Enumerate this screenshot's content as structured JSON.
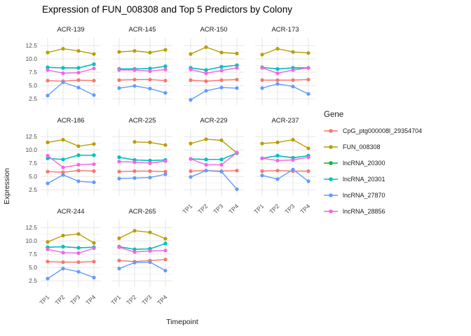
{
  "chart_data": {
    "type": "line",
    "title": "Expression of FUN_008308 and Top 5 Predictors by Colony",
    "xlabel": "Timepoint",
    "ylabel": "Expression",
    "x_categories": [
      "TP1",
      "TP2",
      "TP3",
      "TP4"
    ],
    "yticks": [
      2.5,
      5.0,
      7.5,
      10.0,
      12.5
    ],
    "ytick_labels": [
      "2.5",
      "5.0",
      "7.5",
      "10.0",
      "12.5"
    ],
    "ylim": [
      1.4,
      13.3
    ],
    "grid": true,
    "legend_position": "right",
    "legend_title": "Gene",
    "series_meta": [
      {
        "name": "CpG_ptg000008l_29354704",
        "color": "#F8766D"
      },
      {
        "name": "FUN_008308",
        "color": "#B79F00"
      },
      {
        "name": "lncRNA_20300",
        "color": "#00BA38"
      },
      {
        "name": "lncRNA_20301",
        "color": "#00BFC4"
      },
      {
        "name": "lncRNA_27870",
        "color": "#619CFF"
      },
      {
        "name": "lncRNA_28856",
        "color": "#F564E3"
      }
    ],
    "facets": [
      {
        "colony": "ACR-139",
        "series": {
          "CpG_ptg000008l_29354704": [
            5.9,
            5.8,
            6.0,
            5.9
          ],
          "FUN_008308": [
            11.2,
            11.9,
            11.5,
            10.9
          ],
          "lncRNA_20300": [
            8.4,
            8.3,
            8.3,
            9.0
          ],
          "lncRNA_20301": [
            8.4,
            8.3,
            8.3,
            9.0
          ],
          "lncRNA_27870": [
            3.1,
            5.6,
            4.6,
            3.2
          ],
          "lncRNA_28856": [
            7.9,
            7.3,
            7.4,
            8.2
          ]
        }
      },
      {
        "colony": "ACR-145",
        "series": {
          "CpG_ptg000008l_29354704": [
            6.0,
            6.1,
            6.1,
            5.9
          ],
          "FUN_008308": [
            11.3,
            11.5,
            11.2,
            11.7
          ],
          "lncRNA_20300": [
            8.1,
            8.1,
            8.2,
            8.6
          ],
          "lncRNA_20301": [
            8.1,
            8.1,
            8.2,
            8.6
          ],
          "lncRNA_27870": [
            4.5,
            4.9,
            4.4,
            3.6
          ],
          "lncRNA_28856": [
            7.9,
            7.9,
            7.7,
            8.0
          ]
        }
      },
      {
        "colony": "ACR-150",
        "series": {
          "CpG_ptg000008l_29354704": [
            6.0,
            5.8,
            6.0,
            6.1
          ],
          "FUN_008308": [
            10.9,
            12.2,
            11.2,
            11.0
          ],
          "lncRNA_20300": [
            8.3,
            7.9,
            8.5,
            8.8
          ],
          "lncRNA_20301": [
            8.3,
            7.9,
            8.5,
            8.8
          ],
          "lncRNA_27870": [
            2.3,
            4.0,
            4.6,
            4.5
          ],
          "lncRNA_28856": [
            8.0,
            7.3,
            7.8,
            8.3
          ]
        }
      },
      {
        "colony": "ACR-173",
        "series": {
          "CpG_ptg000008l_29354704": [
            6.0,
            6.0,
            6.0,
            6.1
          ],
          "FUN_008308": [
            10.8,
            11.9,
            11.3,
            11.1
          ],
          "lncRNA_20300": [
            8.4,
            8.1,
            8.3,
            8.3
          ],
          "lncRNA_20301": [
            8.4,
            8.1,
            8.3,
            8.3
          ],
          "lncRNA_27870": [
            4.5,
            5.3,
            4.8,
            3.4
          ],
          "lncRNA_28856": [
            8.3,
            7.3,
            7.9,
            8.3
          ]
        }
      },
      {
        "colony": "ACR-186",
        "series": {
          "CpG_ptg000008l_29354704": [
            5.9,
            5.8,
            6.1,
            6.0
          ],
          "FUN_008308": [
            11.4,
            11.9,
            10.7,
            11.1
          ],
          "lncRNA_20300": [
            8.4,
            8.2,
            9.0,
            9.0
          ],
          "lncRNA_20301": [
            8.4,
            8.2,
            9.0,
            9.0
          ],
          "lncRNA_27870": [
            3.7,
            5.3,
            4.1,
            3.9
          ],
          "lncRNA_28856": [
            8.9,
            6.7,
            7.2,
            7.3
          ]
        }
      },
      {
        "colony": "ACR-225",
        "series": {
          "CpG_ptg000008l_29354704": [
            5.9,
            6.0,
            6.0,
            5.9
          ],
          "FUN_008308": [
            null,
            11.5,
            11.4,
            10.9
          ],
          "lncRNA_20300": [
            8.6,
            8.1,
            8.0,
            8.1
          ],
          "lncRNA_20301": [
            8.6,
            8.1,
            8.0,
            8.1
          ],
          "lncRNA_27870": [
            4.6,
            4.7,
            4.8,
            5.4
          ],
          "lncRNA_28856": [
            7.8,
            7.7,
            7.5,
            7.9
          ]
        }
      },
      {
        "colony": "ACR-229",
        "series": {
          "CpG_ptg000008l_29354704": [
            6.0,
            6.1,
            6.0,
            6.1
          ],
          "FUN_008308": [
            11.2,
            12.0,
            11.8,
            9.4
          ],
          "lncRNA_20300": [
            8.3,
            8.2,
            8.2,
            9.4
          ],
          "lncRNA_20301": [
            8.3,
            8.2,
            8.2,
            9.4
          ],
          "lncRNA_27870": [
            4.9,
            6.1,
            5.9,
            2.6
          ],
          "lncRNA_28856": [
            8.3,
            7.2,
            7.2,
            9.5
          ]
        }
      },
      {
        "colony": "ACR-237",
        "series": {
          "CpG_ptg000008l_29354704": [
            6.0,
            6.1,
            6.0,
            6.0
          ],
          "FUN_008308": [
            11.2,
            11.4,
            11.9,
            10.3
          ],
          "lncRNA_20300": [
            8.4,
            8.9,
            8.5,
            8.9
          ],
          "lncRNA_20301": [
            8.4,
            8.9,
            8.5,
            8.9
          ],
          "lncRNA_27870": [
            5.2,
            4.5,
            6.3,
            4.1
          ],
          "lncRNA_28856": [
            8.4,
            8.0,
            8.1,
            8.6
          ]
        }
      },
      {
        "colony": "ACR-244",
        "series": {
          "CpG_ptg000008l_29354704": [
            6.1,
            6.0,
            6.0,
            6.1
          ],
          "FUN_008308": [
            9.8,
            11.0,
            11.3,
            9.6
          ],
          "lncRNA_20300": [
            8.8,
            8.9,
            8.7,
            8.8
          ],
          "lncRNA_20301": [
            8.8,
            8.9,
            8.7,
            8.8
          ],
          "lncRNA_27870": [
            2.9,
            4.8,
            4.2,
            3.1
          ],
          "lncRNA_28856": [
            8.4,
            7.8,
            7.7,
            8.6
          ]
        }
      },
      {
        "colony": "ACR-265",
        "series": {
          "CpG_ptg000008l_29354704": [
            6.3,
            6.1,
            6.3,
            6.5
          ],
          "FUN_008308": [
            10.5,
            11.9,
            11.6,
            10.4
          ],
          "lncRNA_20300": [
            8.9,
            8.4,
            8.5,
            9.5
          ],
          "lncRNA_20301": [
            8.9,
            8.4,
            8.5,
            9.5
          ],
          "lncRNA_27870": [
            4.8,
            5.9,
            6.0,
            4.4
          ],
          "lncRNA_28856": [
            8.8,
            7.9,
            8.1,
            8.2
          ]
        }
      }
    ]
  }
}
